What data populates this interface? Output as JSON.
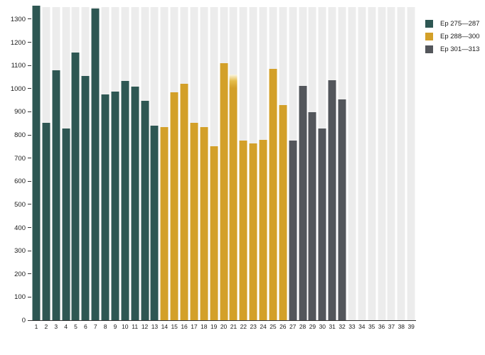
{
  "chart_data": {
    "type": "bar",
    "title": "",
    "xlabel": "",
    "ylabel": "",
    "x": [
      1,
      2,
      3,
      4,
      5,
      6,
      7,
      8,
      9,
      10,
      11,
      12,
      13,
      14,
      15,
      16,
      17,
      18,
      19,
      20,
      21,
      22,
      23,
      24,
      25,
      26,
      27,
      28,
      29,
      30,
      31,
      32,
      33,
      34,
      35,
      36,
      37,
      38,
      39
    ],
    "values": [
      1357,
      853,
      1078,
      827,
      1155,
      1056,
      1345,
      976,
      988,
      1032,
      1010,
      948,
      841,
      834,
      985,
      1022,
      853,
      835,
      750,
      1110,
      1060,
      775,
      762,
      778,
      1084,
      929,
      777,
      1011,
      898,
      828,
      1037,
      954,
      null,
      null,
      null,
      null,
      null,
      null,
      null
    ],
    "series_groups": [
      {
        "name": "Ep 275—287",
        "color": "#2e5753",
        "x_start": 1,
        "x_end": 13
      },
      {
        "name": "Ep 288—300",
        "color": "#d3a029",
        "x_start": 14,
        "x_end": 26
      },
      {
        "name": "Ep 301—313",
        "color": "#53565b",
        "x_start": 27,
        "x_end": 32
      }
    ],
    "ylim": [
      0,
      1352
    ],
    "yticks": [
      0,
      100,
      200,
      300,
      400,
      500,
      600,
      700,
      800,
      900,
      1000,
      1100,
      1200,
      1300
    ],
    "grid": "off",
    "background_column_stripes": true,
    "stripe_color": "#ececec",
    "axis_line_color": "#333333",
    "legend_position": "top-right",
    "faded_top_bars": [
      21
    ],
    "annotations": [
      "Bar 21 top fades from near-white to solid yellow (~1060 down to ~1020)",
      "Columns 33–39 show empty background stripes with no bars"
    ]
  },
  "legend": {
    "items": [
      {
        "label": "Ep 275—287",
        "color": "#2e5753"
      },
      {
        "label": "Ep 288—300",
        "color": "#d3a029"
      },
      {
        "label": "Ep 301—313",
        "color": "#53565b"
      }
    ]
  }
}
